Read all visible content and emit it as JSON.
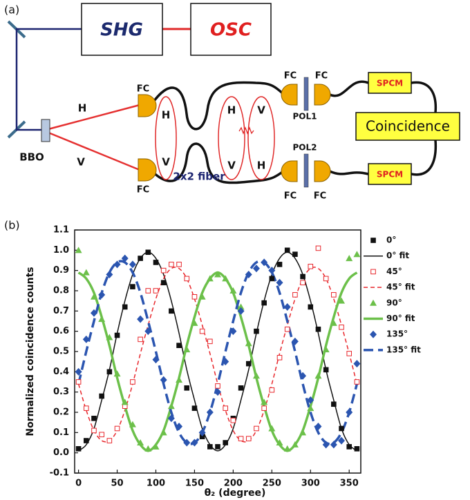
{
  "diagram": {
    "panel_label": "(a)",
    "nodes": [
      {
        "label": "SHG"
      },
      {
        "label": "OSC"
      },
      {
        "label": "BBO"
      },
      {
        "label": "FC"
      },
      {
        "label": "FC"
      },
      {
        "label": "FC"
      },
      {
        "label": "FC"
      },
      {
        "label": "FC"
      },
      {
        "label": "FC"
      },
      {
        "label": "POL1"
      },
      {
        "label": "POL2"
      },
      {
        "label": "SPCM"
      },
      {
        "label": "SPCM"
      },
      {
        "label": "Coincidence"
      },
      {
        "label": "2x2 fiber"
      }
    ],
    "beam_labels": [
      "H",
      "V"
    ],
    "polarization_states": [
      [
        "H",
        "V"
      ],
      [
        "H",
        "V"
      ],
      [
        "V",
        "H"
      ]
    ]
  },
  "chart_data": {
    "type": "scatter",
    "panel_label": "(b)",
    "xlabel": "θ₂ (degree)",
    "ylabel": "Normalized coincidence counts",
    "x": [
      0,
      10,
      20,
      30,
      40,
      50,
      60,
      70,
      80,
      90,
      100,
      110,
      120,
      130,
      140,
      150,
      160,
      170,
      180,
      190,
      200,
      210,
      220,
      230,
      240,
      250,
      260,
      270,
      280,
      290,
      300,
      310,
      320,
      330,
      340,
      350,
      360
    ],
    "xlim": [
      -5,
      365
    ],
    "ylim": [
      -0.1,
      1.1
    ],
    "xticks": [
      0,
      50,
      100,
      150,
      200,
      250,
      300,
      350
    ],
    "yticks": [
      -0.1,
      {
        "value": 0,
        "label": "0.0"
      },
      0.1,
      0.2,
      0.3,
      0.4,
      0.5,
      0.6,
      0.7,
      0.8,
      0.9,
      {
        "value": 1,
        "label": "1.0"
      },
      1.1
    ],
    "grid": false,
    "legend": "right",
    "series": [
      {
        "name": "0°",
        "kind": "points",
        "marker": "square",
        "color": "#111111",
        "values": [
          0.02,
          0.06,
          0.17,
          0.28,
          0.4,
          0.58,
          0.72,
          0.82,
          0.96,
          0.99,
          0.94,
          0.84,
          0.7,
          0.53,
          0.32,
          0.22,
          0.08,
          0.03,
          0.03,
          0.05,
          0.17,
          0.32,
          0.44,
          0.6,
          0.74,
          0.86,
          0.93,
          1.0,
          0.98,
          0.87,
          0.72,
          0.61,
          0.41,
          0.24,
          0.12,
          0.03,
          0.02
        ]
      },
      {
        "name": "0° fit",
        "kind": "fit",
        "line_style": "solid",
        "color": "#111111",
        "values": [
          0.01,
          0.04,
          0.12,
          0.26,
          0.41,
          0.59,
          0.75,
          0.88,
          0.96,
          0.99,
          0.96,
          0.88,
          0.75,
          0.59,
          0.41,
          0.26,
          0.12,
          0.04,
          0.01,
          0.04,
          0.12,
          0.26,
          0.41,
          0.59,
          0.75,
          0.88,
          0.96,
          0.99,
          0.96,
          0.88,
          0.75,
          0.59,
          0.41,
          0.26,
          0.12,
          0.04,
          0.01
        ]
      },
      {
        "name": "45°",
        "kind": "points",
        "marker": "open-square",
        "color": "#e8262b",
        "values": [
          0.35,
          0.22,
          0.11,
          0.09,
          0.06,
          0.12,
          0.23,
          0.35,
          0.56,
          0.8,
          0.8,
          0.9,
          0.93,
          0.93,
          0.86,
          0.77,
          0.6,
          0.55,
          0.33,
          0.22,
          0.16,
          0.07,
          0.07,
          0.12,
          0.22,
          0.31,
          0.47,
          0.61,
          0.78,
          0.84,
          0.92,
          1.01,
          0.86,
          0.78,
          0.62,
          0.49,
          0.35
        ]
      },
      {
        "name": "45° fit",
        "kind": "fit",
        "line_style": "dashed",
        "color": "#e8262b",
        "values": [
          0.34,
          0.21,
          0.11,
          0.06,
          0.06,
          0.11,
          0.21,
          0.34,
          0.49,
          0.63,
          0.76,
          0.86,
          0.91,
          0.91,
          0.86,
          0.76,
          0.63,
          0.49,
          0.34,
          0.21,
          0.11,
          0.06,
          0.06,
          0.11,
          0.21,
          0.34,
          0.49,
          0.63,
          0.76,
          0.86,
          0.91,
          0.91,
          0.86,
          0.76,
          0.63,
          0.49,
          0.34
        ]
      },
      {
        "name": "90°",
        "kind": "points",
        "marker": "triangle",
        "color": "#6cc04a",
        "values": [
          1.0,
          0.89,
          0.77,
          0.66,
          0.57,
          0.39,
          0.25,
          0.14,
          0.05,
          0.02,
          0.03,
          0.1,
          0.23,
          0.36,
          0.51,
          0.64,
          0.77,
          0.86,
          0.88,
          0.86,
          0.8,
          0.72,
          0.54,
          0.38,
          0.25,
          0.12,
          0.05,
          0.02,
          0.04,
          0.1,
          0.22,
          0.38,
          0.51,
          0.64,
          0.75,
          0.96,
          0.98
        ]
      },
      {
        "name": "90° fit",
        "kind": "fit",
        "line_style": "thick",
        "color": "#6cc04a",
        "values": [
          0.89,
          0.86,
          0.79,
          0.67,
          0.53,
          0.37,
          0.23,
          0.11,
          0.04,
          0.01,
          0.04,
          0.11,
          0.23,
          0.37,
          0.53,
          0.67,
          0.79,
          0.86,
          0.89,
          0.86,
          0.79,
          0.67,
          0.53,
          0.37,
          0.23,
          0.11,
          0.04,
          0.01,
          0.04,
          0.11,
          0.23,
          0.37,
          0.53,
          0.67,
          0.79,
          0.86,
          0.89
        ]
      },
      {
        "name": "135°",
        "kind": "points",
        "marker": "diamond",
        "color": "#2b55b0",
        "values": [
          0.4,
          0.56,
          0.69,
          0.78,
          0.88,
          0.93,
          0.96,
          0.93,
          0.66,
          0.6,
          0.46,
          0.36,
          0.17,
          0.13,
          0.05,
          0.05,
          0.1,
          0.2,
          0.3,
          0.45,
          0.6,
          0.7,
          0.88,
          0.91,
          0.94,
          0.9,
          0.84,
          0.72,
          0.55,
          0.38,
          0.26,
          0.13,
          0.04,
          0.04,
          0.06,
          0.2,
          0.44
        ]
      },
      {
        "name": "135° fit",
        "kind": "fit",
        "line_style": "thick-dashed",
        "color": "#2b55b0",
        "values": [
          0.34,
          0.5,
          0.65,
          0.79,
          0.89,
          0.94,
          0.94,
          0.89,
          0.79,
          0.65,
          0.5,
          0.34,
          0.2,
          0.1,
          0.05,
          0.05,
          0.1,
          0.2,
          0.34,
          0.5,
          0.65,
          0.79,
          0.89,
          0.94,
          0.94,
          0.89,
          0.79,
          0.65,
          0.5,
          0.34,
          0.2,
          0.1,
          0.05,
          0.05,
          0.1,
          0.2,
          0.34
        ]
      }
    ]
  }
}
